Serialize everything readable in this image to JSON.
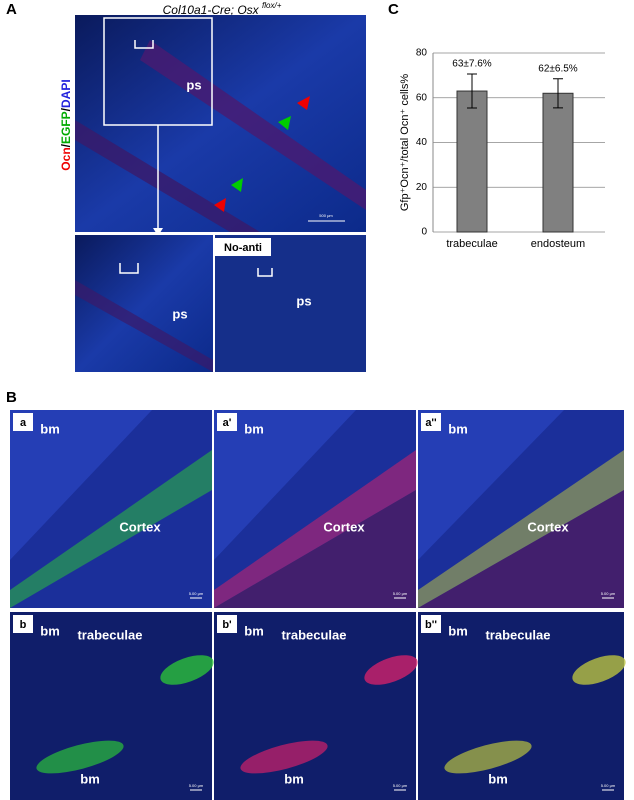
{
  "panel_a": {
    "label": "A",
    "title": "Col10a1-Cre; Osx",
    "title_superscript": "flox/+",
    "stain_parts": [
      "Ocn",
      "/",
      "EGFP",
      "/",
      "DAPI"
    ],
    "main_image": {
      "label": "ps",
      "scale_bar": "500 μm"
    },
    "inset_left": {
      "label": "ps"
    },
    "inset_right": {
      "tag": "No-anti",
      "label": "ps"
    }
  },
  "panel_b": {
    "label": "B",
    "images": [
      {
        "tag": "a",
        "labels": [
          "bm",
          "Cortex"
        ],
        "scale_bar": "5.00 μm"
      },
      {
        "tag": "a'",
        "labels": [
          "bm",
          "Cortex"
        ],
        "scale_bar": "5.00 μm"
      },
      {
        "tag": "a''",
        "labels": [
          "bm",
          "Cortex"
        ],
        "scale_bar": "5.00 μm"
      },
      {
        "tag": "b",
        "labels": [
          "bm",
          "trabeculae",
          "bm"
        ],
        "scale_bar": "5.00 μm"
      },
      {
        "tag": "b'",
        "labels": [
          "bm",
          "trabeculae",
          "bm"
        ],
        "scale_bar": "5.00 μm"
      },
      {
        "tag": "b''",
        "labels": [
          "bm",
          "trabeculae",
          "bm"
        ],
        "scale_bar": "5.00 μm"
      }
    ]
  },
  "panel_c": {
    "label": "C"
  },
  "chart_data": {
    "type": "bar",
    "ylabel": "Gfp⁺Ocn⁺/total Ocn⁺ cells%",
    "categories": [
      "trabeculae",
      "endosteum"
    ],
    "values": [
      63,
      62
    ],
    "errors": [
      7.6,
      6.5
    ],
    "value_labels": [
      "63±7.6%",
      "62±6.5%"
    ],
    "color": "#808080",
    "ylim": [
      0,
      80
    ],
    "yticks": [
      0,
      20,
      40,
      60,
      80
    ],
    "grid": true
  }
}
